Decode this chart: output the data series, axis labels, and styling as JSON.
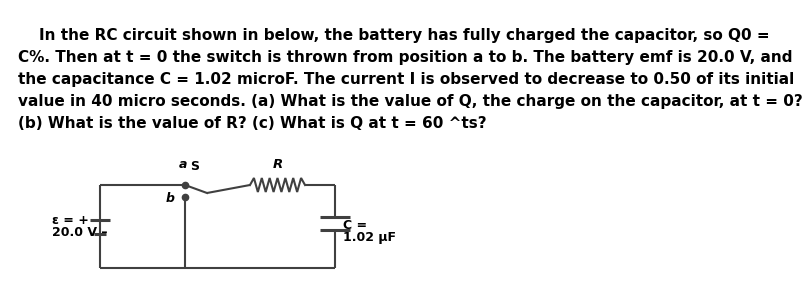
{
  "text_lines": [
    "    In the RC circuit shown in below, the battery has fully charged the capacitor, so Q0 =",
    "C%. Then at t = 0 the switch is thrown from position a to b. The battery emf is 20.0 V, and",
    "the capacitance C = 1.02 microF. The current I is observed to decrease to 0.50 of its initial",
    "value in 40 micro seconds. (a) What is the value of Q, the charge on the capacitor, at t = 0?",
    "(b) What is the value of R? (c) What is Q at t = 60 ^ts?"
  ],
  "background_color": "#ffffff",
  "text_color": "#000000",
  "text_fontsize": 11.0,
  "circuit_color": "#404040",
  "label_emf_line1": "ε = +",
  "label_emf_line2": "20.0 V –",
  "label_S": "S",
  "label_R": "R",
  "label_a": "a",
  "label_b": "b",
  "label_C_line1": "C =",
  "label_C_line2": "1.02 μF"
}
